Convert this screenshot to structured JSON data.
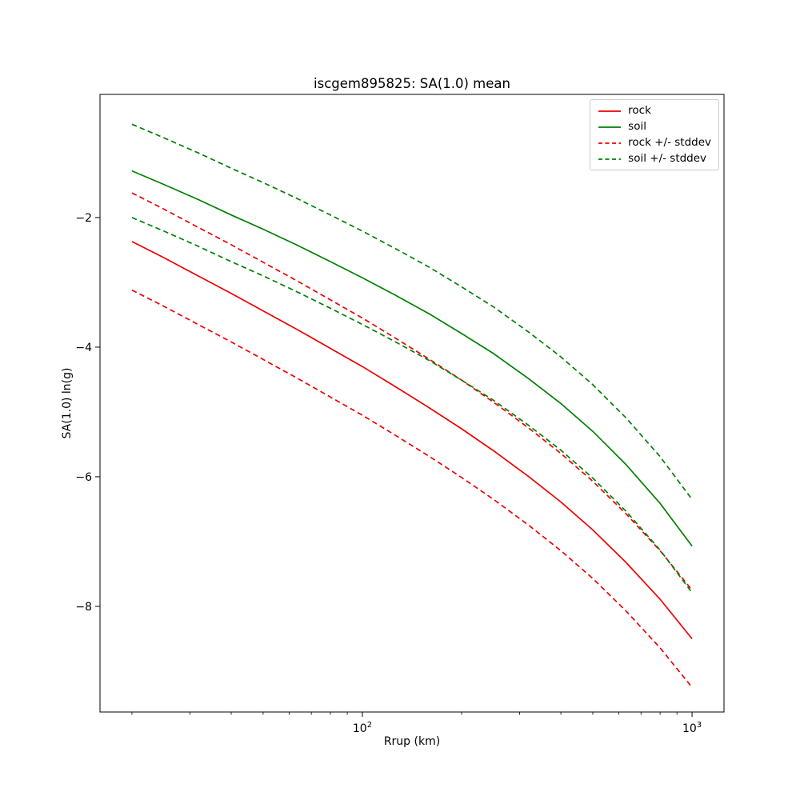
{
  "figure": {
    "title": "iscgem895825: SA(1.0) mean"
  },
  "chart_data": {
    "type": "line",
    "title": "iscgem895825: SA(1.0) mean",
    "xlabel": "Rrup (km)",
    "ylabel": "SA(1.0) ln(g)",
    "x_scale": "log",
    "y_scale": "linear",
    "xlim": [
      16,
      1250
    ],
    "ylim": [
      -9.63,
      -0.1
    ],
    "grid": false,
    "background": "#ffffff",
    "axis_color": "#000000",
    "x_ticks": [
      {
        "value": 100,
        "mantissa": "10",
        "exponent": "2"
      },
      {
        "value": 1000,
        "mantissa": "10",
        "exponent": "3"
      }
    ],
    "y_ticks": [
      {
        "value": -2,
        "label": "−2"
      },
      {
        "value": -4,
        "label": "−4"
      },
      {
        "value": -6,
        "label": "−6"
      },
      {
        "value": -8,
        "label": "−8"
      }
    ],
    "x": [
      20,
      25,
      32,
      40,
      50,
      63,
      80,
      100,
      125,
      160,
      200,
      250,
      320,
      400,
      500,
      630,
      800,
      1000
    ],
    "series": [
      {
        "name": "rock",
        "color": "#ee0000",
        "style": "solid",
        "values": [
          -2.37,
          -2.62,
          -2.91,
          -3.17,
          -3.44,
          -3.72,
          -4.02,
          -4.3,
          -4.6,
          -4.94,
          -5.26,
          -5.6,
          -6.0,
          -6.39,
          -6.82,
          -7.32,
          -7.89,
          -8.5
        ]
      },
      {
        "name": "soil",
        "color": "#008000",
        "style": "solid",
        "values": [
          -1.28,
          -1.49,
          -1.73,
          -1.96,
          -2.18,
          -2.42,
          -2.68,
          -2.93,
          -3.19,
          -3.49,
          -3.79,
          -4.1,
          -4.49,
          -4.87,
          -5.3,
          -5.81,
          -6.41,
          -7.07
        ]
      },
      {
        "name": "rock-plus-stddev",
        "color": "#ee0000",
        "style": "dashed",
        "values": [
          -1.62,
          -1.87,
          -2.16,
          -2.42,
          -2.69,
          -2.97,
          -3.27,
          -3.55,
          -3.85,
          -4.19,
          -4.51,
          -4.85,
          -5.25,
          -5.64,
          -6.07,
          -6.57,
          -7.14,
          -7.75
        ]
      },
      {
        "name": "rock-minus-stddev",
        "color": "#ee0000",
        "style": "dashed",
        "values": [
          -3.12,
          -3.37,
          -3.66,
          -3.92,
          -4.19,
          -4.47,
          -4.77,
          -5.05,
          -5.35,
          -5.69,
          -6.01,
          -6.35,
          -6.75,
          -7.14,
          -7.57,
          -8.07,
          -8.64,
          -9.25
        ]
      },
      {
        "name": "soil-plus-stddev",
        "color": "#008000",
        "style": "dashed",
        "values": [
          -0.56,
          -0.77,
          -1.01,
          -1.24,
          -1.46,
          -1.7,
          -1.96,
          -2.21,
          -2.47,
          -2.77,
          -3.07,
          -3.38,
          -3.77,
          -4.15,
          -4.58,
          -5.09,
          -5.69,
          -6.35
        ]
      },
      {
        "name": "soil-minus-stddev",
        "color": "#008000",
        "style": "dashed",
        "values": [
          -2.0,
          -2.21,
          -2.45,
          -2.68,
          -2.9,
          -3.14,
          -3.4,
          -3.65,
          -3.91,
          -4.21,
          -4.51,
          -4.82,
          -5.21,
          -5.59,
          -6.02,
          -6.53,
          -7.13,
          -7.79
        ]
      }
    ],
    "legend": {
      "position": "upper right",
      "entries": [
        {
          "label": "rock",
          "color": "#ee0000",
          "style": "solid"
        },
        {
          "label": "soil",
          "color": "#008000",
          "style": "solid"
        },
        {
          "label": "rock +/- stddev",
          "color": "#ee0000",
          "style": "dashed"
        },
        {
          "label": "soil +/- stddev",
          "color": "#008000",
          "style": "dashed"
        }
      ]
    }
  }
}
